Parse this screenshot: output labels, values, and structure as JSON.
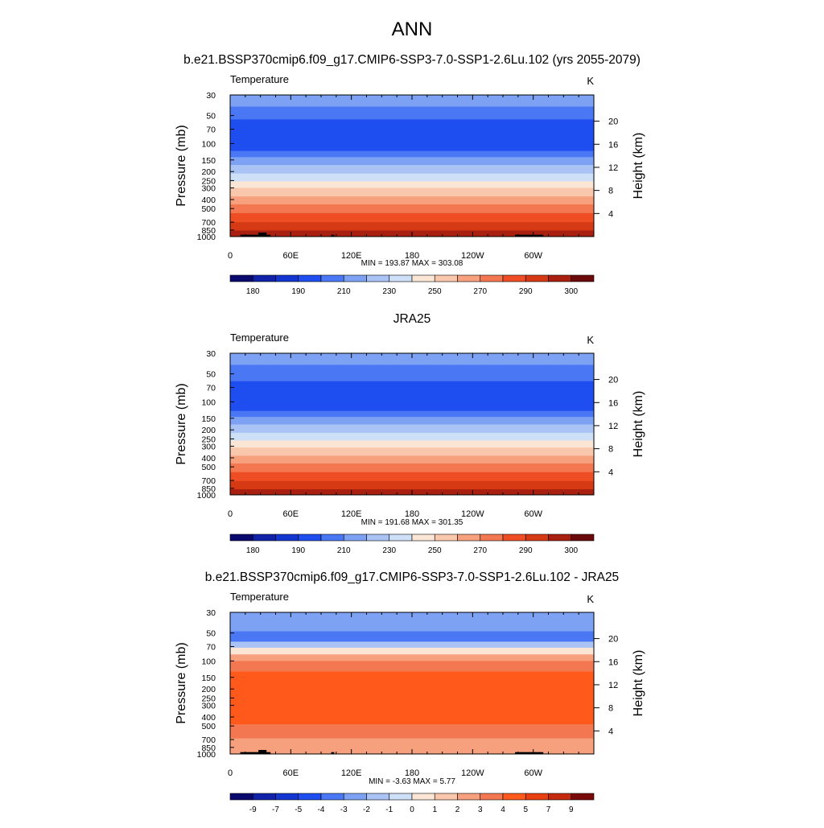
{
  "page": {
    "main_title": "ANN"
  },
  "colors": {
    "abs_palette": [
      "#0a0a6e",
      "#0f22a8",
      "#1436d0",
      "#1e4df0",
      "#4a78f5",
      "#7ea2f3",
      "#a9c3f5",
      "#cde0f8",
      "#fbe6d6",
      "#f9c7ac",
      "#f6a07e",
      "#f37852",
      "#ef4e24",
      "#d63a14",
      "#a92010",
      "#6b0a0a"
    ],
    "diff_palette": [
      "#0a0a6e",
      "#0f22a8",
      "#1436d0",
      "#1e4df0",
      "#4a78f5",
      "#7ea2f3",
      "#a9c3f5",
      "#cde0f8",
      "#fbe6d6",
      "#f9c7ac",
      "#f6a07e",
      "#f37852",
      "#ff5a1c",
      "#e84010",
      "#c52a0e",
      "#7a0a0a"
    ]
  },
  "chart_data": [
    {
      "type": "heatmap",
      "title": "b.e21.BSSP370cmip6.f09_g17.CMIP6-SSP3-7.0-SSP1-2.6Lu.102 (yrs 2055-2079)",
      "left_label": "Temperature",
      "right_label": "K",
      "ylabel": "Pressure (mb)",
      "y2label": "Height (km)",
      "xticks": [
        "0",
        "60E",
        "120E",
        "180",
        "120W",
        "60W"
      ],
      "xtick_values": [
        0,
        60,
        120,
        180,
        240,
        300
      ],
      "xlim": [
        0,
        360
      ],
      "yticks": [
        "30",
        "50",
        "70",
        "100",
        "150",
        "200",
        "250",
        "300",
        "400",
        "500",
        "700",
        "850",
        "1000"
      ],
      "ytick_values": [
        30,
        50,
        70,
        100,
        150,
        200,
        250,
        300,
        400,
        500,
        700,
        850,
        1000
      ],
      "ylim": [
        30,
        1000
      ],
      "y2ticks": [
        "20",
        "16",
        "12",
        "8",
        "4"
      ],
      "y2tick_values": [
        20,
        16,
        12,
        8,
        4
      ],
      "stats": "MIN = 193.87  MAX = 303.08",
      "colorbar_labels": [
        "180",
        "190",
        "210",
        "230",
        "250",
        "270",
        "290",
        "300"
      ],
      "palette": "abs",
      "levels": [
        {
          "p_top": 30,
          "p_bot": 40,
          "color_index": 5
        },
        {
          "p_top": 40,
          "p_bot": 55,
          "color_index": 4
        },
        {
          "p_top": 55,
          "p_bot": 120,
          "color_index": 3
        },
        {
          "p_top": 120,
          "p_bot": 140,
          "color_index": 4
        },
        {
          "p_top": 140,
          "p_bot": 170,
          "color_index": 5
        },
        {
          "p_top": 170,
          "p_bot": 210,
          "color_index": 6
        },
        {
          "p_top": 210,
          "p_bot": 255,
          "color_index": 7
        },
        {
          "p_top": 255,
          "p_bot": 300,
          "color_index": 8
        },
        {
          "p_top": 300,
          "p_bot": 370,
          "color_index": 9
        },
        {
          "p_top": 370,
          "p_bot": 450,
          "color_index": 10
        },
        {
          "p_top": 450,
          "p_bot": 560,
          "color_index": 11
        },
        {
          "p_top": 560,
          "p_bot": 700,
          "color_index": 12
        },
        {
          "p_top": 700,
          "p_bot": 860,
          "color_index": 13
        },
        {
          "p_top": 860,
          "p_bot": 1000,
          "color_index": 14
        }
      ],
      "topography": true
    },
    {
      "type": "heatmap",
      "title": "JRA25",
      "left_label": "Temperature",
      "right_label": "K",
      "ylabel": "Pressure (mb)",
      "y2label": "Height (km)",
      "xticks": [
        "0",
        "60E",
        "120E",
        "180",
        "120W",
        "60W"
      ],
      "xtick_values": [
        0,
        60,
        120,
        180,
        240,
        300
      ],
      "xlim": [
        0,
        360
      ],
      "yticks": [
        "30",
        "50",
        "70",
        "100",
        "150",
        "200",
        "250",
        "300",
        "400",
        "500",
        "700",
        "850",
        "1000"
      ],
      "ytick_values": [
        30,
        50,
        70,
        100,
        150,
        200,
        250,
        300,
        400,
        500,
        700,
        850,
        1000
      ],
      "ylim": [
        30,
        1000
      ],
      "y2ticks": [
        "20",
        "16",
        "12",
        "8",
        "4"
      ],
      "y2tick_values": [
        20,
        16,
        12,
        8,
        4
      ],
      "stats": "MIN = 191.68  MAX = 301.35",
      "colorbar_labels": [
        "180",
        "190",
        "210",
        "230",
        "250",
        "270",
        "290",
        "300"
      ],
      "palette": "abs",
      "levels": [
        {
          "p_top": 30,
          "p_bot": 40,
          "color_index": 5
        },
        {
          "p_top": 40,
          "p_bot": 60,
          "color_index": 4
        },
        {
          "p_top": 60,
          "p_bot": 125,
          "color_index": 3
        },
        {
          "p_top": 125,
          "p_bot": 145,
          "color_index": 4
        },
        {
          "p_top": 145,
          "p_bot": 175,
          "color_index": 5
        },
        {
          "p_top": 175,
          "p_bot": 215,
          "color_index": 6
        },
        {
          "p_top": 215,
          "p_bot": 260,
          "color_index": 7
        },
        {
          "p_top": 260,
          "p_bot": 310,
          "color_index": 8
        },
        {
          "p_top": 310,
          "p_bot": 380,
          "color_index": 9
        },
        {
          "p_top": 380,
          "p_bot": 460,
          "color_index": 10
        },
        {
          "p_top": 460,
          "p_bot": 570,
          "color_index": 11
        },
        {
          "p_top": 570,
          "p_bot": 710,
          "color_index": 12
        },
        {
          "p_top": 710,
          "p_bot": 870,
          "color_index": 13
        },
        {
          "p_top": 870,
          "p_bot": 1000,
          "color_index": 14
        }
      ],
      "topography": false
    },
    {
      "type": "heatmap",
      "title": "b.e21.BSSP370cmip6.f09_g17.CMIP6-SSP3-7.0-SSP1-2.6Lu.102 - JRA25",
      "left_label": "Temperature",
      "right_label": "K",
      "ylabel": "Pressure (mb)",
      "y2label": "Height (km)",
      "xticks": [
        "0",
        "60E",
        "120E",
        "180",
        "120W",
        "60W"
      ],
      "xtick_values": [
        0,
        60,
        120,
        180,
        240,
        300
      ],
      "xlim": [
        0,
        360
      ],
      "yticks": [
        "30",
        "50",
        "70",
        "100",
        "150",
        "200",
        "250",
        "300",
        "400",
        "500",
        "700",
        "850",
        "1000"
      ],
      "ytick_values": [
        30,
        50,
        70,
        100,
        150,
        200,
        250,
        300,
        400,
        500,
        700,
        850,
        1000
      ],
      "ylim": [
        30,
        1000
      ],
      "y2ticks": [
        "20",
        "16",
        "12",
        "8",
        "4"
      ],
      "y2tick_values": [
        20,
        16,
        12,
        8,
        4
      ],
      "stats": "MIN =  -3.63  MAX =   5.77",
      "colorbar_labels": [
        "-9",
        "-7",
        "-5",
        "-4",
        "-3",
        "-2",
        "-1",
        "0",
        "1",
        "2",
        "3",
        "4",
        "5",
        "7",
        "9"
      ],
      "palette": "diff",
      "levels": [
        {
          "p_top": 30,
          "p_bot": 48,
          "color_index": 5
        },
        {
          "p_top": 48,
          "p_bot": 62,
          "color_index": 4
        },
        {
          "p_top": 62,
          "p_bot": 72,
          "color_index": 6
        },
        {
          "p_top": 72,
          "p_bot": 85,
          "color_index": 8
        },
        {
          "p_top": 85,
          "p_bot": 100,
          "color_index": 10
        },
        {
          "p_top": 100,
          "p_bot": 130,
          "color_index": 11
        },
        {
          "p_top": 130,
          "p_bot": 480,
          "color_index": 12
        },
        {
          "p_top": 480,
          "p_bot": 680,
          "color_index": 11
        },
        {
          "p_top": 680,
          "p_bot": 1000,
          "color_index": 10
        }
      ],
      "topography": true
    }
  ]
}
